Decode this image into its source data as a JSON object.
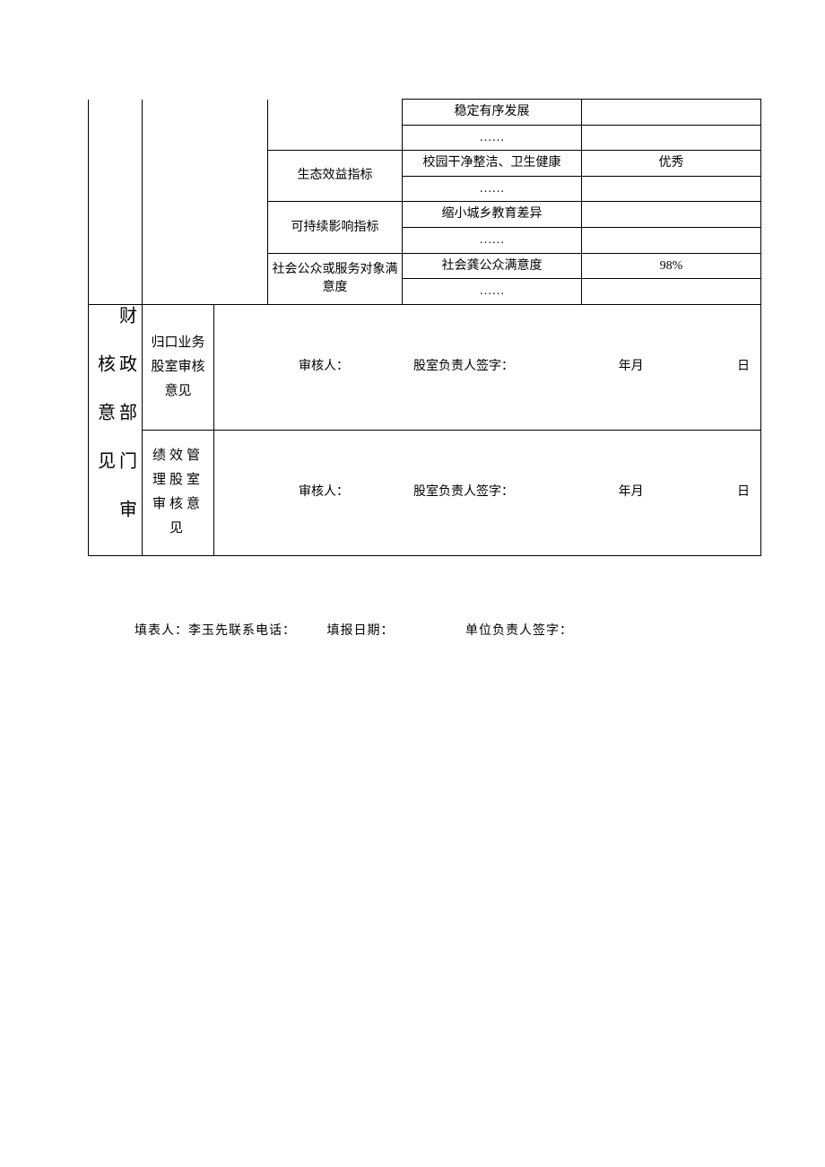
{
  "table": {
    "rows": [
      {
        "cat": "",
        "sub1": "稳定有序发展",
        "val": ""
      },
      {
        "cat": "",
        "sub1": "……",
        "val": ""
      },
      {
        "cat": "生态效益指标",
        "sub1": "校园干净整洁、卫生健康",
        "val": "优秀"
      },
      {
        "cat": "",
        "sub1": "……",
        "val": ""
      },
      {
        "cat": "可持续影响指标",
        "sub1": "缩小城乡教育差异",
        "val": ""
      },
      {
        "cat": "",
        "sub1": "……",
        "val": ""
      },
      {
        "cat": "社会公众或服务对象满意度",
        "sub1": "社会龚公众满意度",
        "val": "98%"
      },
      {
        "cat": "",
        "sub1": "……",
        "val": ""
      }
    ],
    "approval": {
      "left_label": "财政部门审核意见",
      "block1_label": "归口业务股室审核意见",
      "block2_label": "绩效管理股室审核意见",
      "sig_reviewer": "审核人：",
      "sig_head": "股室负责人签字：",
      "sig_ym": "年月",
      "sig_d": "日"
    }
  },
  "footer": {
    "preparer": "填表人：李玉先联系电话：",
    "date": "填报日期：",
    "unit_head": "单位负责人签字："
  },
  "style": {
    "background_color": "#ffffff",
    "text_color": "#000000",
    "border_color": "#000000",
    "font_family": "SimSun",
    "body_fontsize": 14,
    "vlabel_fontsize": 20
  }
}
